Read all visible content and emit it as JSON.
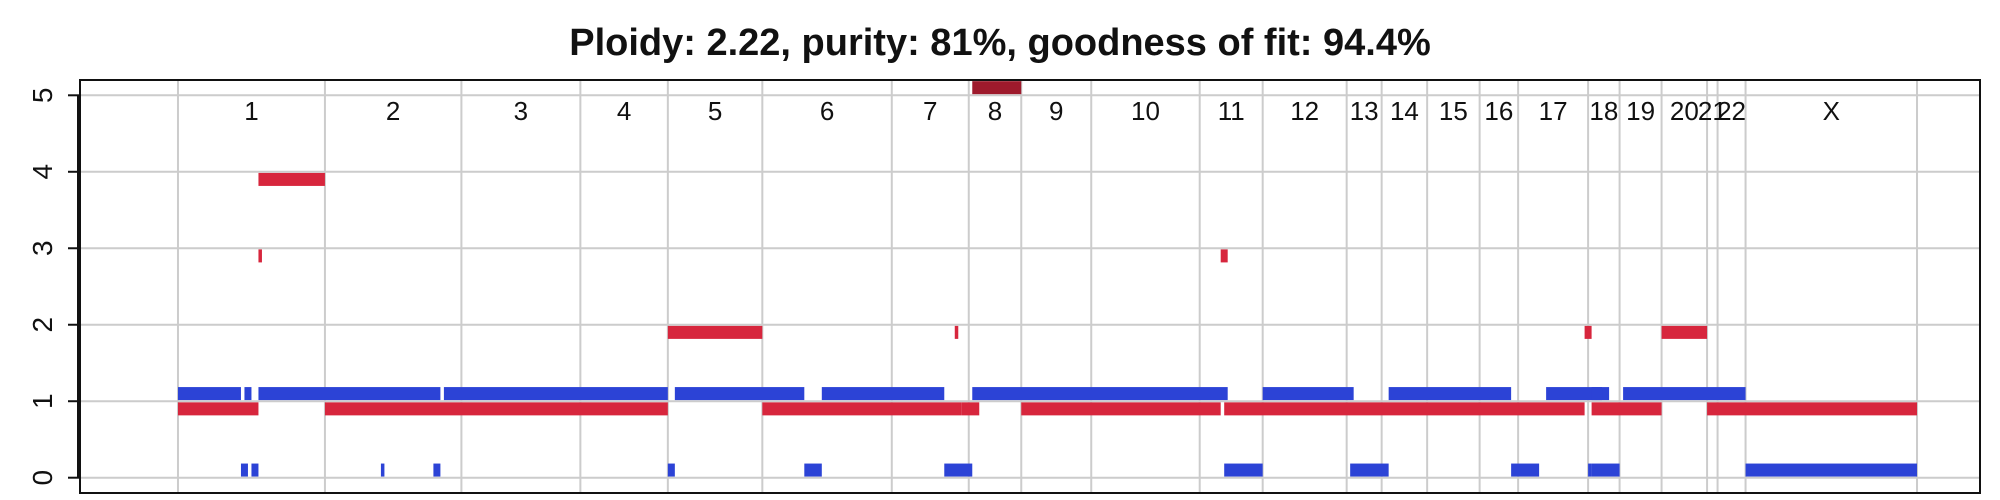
{
  "chart_data": {
    "type": "segment-plot",
    "title": "Ploidy: 2.22, purity: 81%, goodness of fit: 94.4%",
    "ylim": [
      -0.2,
      5.2
    ],
    "yticks": [
      0,
      1,
      2,
      3,
      4,
      5
    ],
    "x_domain": [
      -1.4,
      25.75
    ],
    "grid": true,
    "colors": {
      "total_copy_number": "#d7263d",
      "minor_allele": "#2c43d6",
      "capped": "#9e1a2c",
      "grid": "#cccccc"
    },
    "chromosomes": [
      {
        "label": "1",
        "start": 0.0,
        "end": 2.1
      },
      {
        "label": "2",
        "start": 2.1,
        "end": 4.05
      },
      {
        "label": "3",
        "start": 4.05,
        "end": 5.75
      },
      {
        "label": "4",
        "start": 5.75,
        "end": 7.0
      },
      {
        "label": "5",
        "start": 7.0,
        "end": 8.35
      },
      {
        "label": "6",
        "start": 8.35,
        "end": 10.2
      },
      {
        "label": "7",
        "start": 10.2,
        "end": 11.3
      },
      {
        "label": "8",
        "start": 11.3,
        "end": 12.05
      },
      {
        "label": "9",
        "start": 12.05,
        "end": 13.05
      },
      {
        "label": "10",
        "start": 13.05,
        "end": 14.6
      },
      {
        "label": "11",
        "start": 14.6,
        "end": 15.5
      },
      {
        "label": "12",
        "start": 15.5,
        "end": 16.7
      },
      {
        "label": "13",
        "start": 16.7,
        "end": 17.2
      },
      {
        "label": "14",
        "start": 17.2,
        "end": 17.85
      },
      {
        "label": "15",
        "start": 17.85,
        "end": 18.6
      },
      {
        "label": "16",
        "start": 18.6,
        "end": 19.15
      },
      {
        "label": "17",
        "start": 19.15,
        "end": 20.15
      },
      {
        "label": "18",
        "start": 20.15,
        "end": 20.6
      },
      {
        "label": "19",
        "start": 20.6,
        "end": 21.2
      },
      {
        "label": "20",
        "start": 21.2,
        "end": 21.85
      },
      {
        "label": "21",
        "start": 21.85,
        "end": 22.0
      },
      {
        "label": "22",
        "start": 22.0,
        "end": 22.4
      },
      {
        "label": "X",
        "start": 22.4,
        "end": 24.85
      }
    ],
    "total_copy_number_segments": [
      {
        "x0": 0.0,
        "x1": 1.15,
        "y": 0.9
      },
      {
        "x0": 1.15,
        "x1": 1.2,
        "y": 2.9
      },
      {
        "x0": 1.15,
        "x1": 2.1,
        "y": 3.9
      },
      {
        "x0": 2.1,
        "x1": 7.0,
        "y": 0.9
      },
      {
        "x0": 7.0,
        "x1": 8.35,
        "y": 1.9
      },
      {
        "x0": 8.35,
        "x1": 11.2,
        "y": 0.9
      },
      {
        "x0": 11.1,
        "x1": 11.15,
        "y": 1.9
      },
      {
        "x0": 11.2,
        "x1": 11.45,
        "y": 0.9
      },
      {
        "x0": 12.05,
        "x1": 14.9,
        "y": 0.9
      },
      {
        "x0": 14.9,
        "x1": 15.0,
        "y": 2.9
      },
      {
        "x0": 14.95,
        "x1": 20.1,
        "y": 0.9
      },
      {
        "x0": 20.1,
        "x1": 20.2,
        "y": 1.9
      },
      {
        "x0": 20.2,
        "x1": 21.2,
        "y": 0.9
      },
      {
        "x0": 21.2,
        "x1": 21.85,
        "y": 1.9
      },
      {
        "x0": 21.85,
        "x1": 24.85,
        "y": 0.9
      }
    ],
    "minor_allele_segments": [
      {
        "x0": 0.0,
        "x1": 0.9,
        "y": 1.1
      },
      {
        "x0": 0.9,
        "x1": 1.0,
        "y": 0.1
      },
      {
        "x0": 0.95,
        "x1": 1.05,
        "y": 1.1
      },
      {
        "x0": 1.05,
        "x1": 1.15,
        "y": 0.1
      },
      {
        "x0": 1.15,
        "x1": 3.75,
        "y": 1.1
      },
      {
        "x0": 2.9,
        "x1": 2.95,
        "y": 0.1
      },
      {
        "x0": 3.65,
        "x1": 3.75,
        "y": 0.1
      },
      {
        "x0": 3.8,
        "x1": 7.0,
        "y": 1.1
      },
      {
        "x0": 7.0,
        "x1": 7.1,
        "y": 0.1
      },
      {
        "x0": 7.1,
        "x1": 8.95,
        "y": 1.1
      },
      {
        "x0": 8.95,
        "x1": 9.2,
        "y": 0.1
      },
      {
        "x0": 9.2,
        "x1": 10.95,
        "y": 1.1
      },
      {
        "x0": 10.95,
        "x1": 11.35,
        "y": 0.1
      },
      {
        "x0": 11.35,
        "x1": 15.0,
        "y": 1.1
      },
      {
        "x0": 14.95,
        "x1": 15.5,
        "y": 0.1
      },
      {
        "x0": 15.5,
        "x1": 16.8,
        "y": 1.1
      },
      {
        "x0": 16.75,
        "x1": 17.3,
        "y": 0.1
      },
      {
        "x0": 17.3,
        "x1": 19.05,
        "y": 1.1
      },
      {
        "x0": 19.05,
        "x1": 19.45,
        "y": 0.1
      },
      {
        "x0": 19.55,
        "x1": 20.45,
        "y": 1.1
      },
      {
        "x0": 20.15,
        "x1": 20.2,
        "y": 0.1
      },
      {
        "x0": 20.2,
        "x1": 20.35,
        "y": 1.1
      },
      {
        "x0": 20.2,
        "x1": 20.6,
        "y": 0.1
      },
      {
        "x0": 20.65,
        "x1": 22.4,
        "y": 1.1
      },
      {
        "x0": 22.4,
        "x1": 24.85,
        "y": 0.1
      }
    ],
    "capped_segments": [
      {
        "x0": 11.35,
        "x1": 12.05,
        "y": 5.1
      }
    ]
  }
}
